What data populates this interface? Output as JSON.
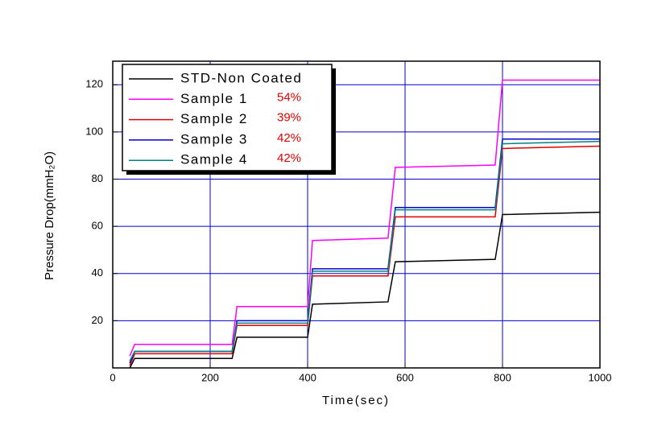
{
  "chart_data": {
    "type": "line",
    "x_label": "Time(sec)",
    "y_label": "Pressure Drop(mmH₂O)",
    "x": [
      35,
      45,
      245,
      255,
      400,
      410,
      565,
      580,
      785,
      800,
      1000
    ],
    "series": [
      {
        "name": "STD-Non Coated",
        "color": "#000000",
        "values": [
          0,
          4,
          4,
          13,
          13,
          27,
          28,
          45,
          46,
          65,
          66
        ]
      },
      {
        "name": "Sample 1",
        "annotation": "54%",
        "color": "#ff00ff",
        "values": [
          5,
          10,
          10,
          26,
          26,
          54,
          55,
          85,
          86,
          122,
          122
        ]
      },
      {
        "name": "Sample 2",
        "annotation": "39%",
        "color": "#e00000",
        "values": [
          1,
          6,
          6,
          18,
          18,
          39,
          39,
          64,
          64,
          93,
          94
        ]
      },
      {
        "name": "Sample 3",
        "annotation": "42%",
        "color": "#0000cc",
        "values": [
          2,
          7,
          7,
          20,
          20,
          42,
          42,
          68,
          68,
          97,
          97
        ]
      },
      {
        "name": "Sample 4",
        "annotation": "42%",
        "color": "#008080",
        "values": [
          3,
          7,
          7,
          19,
          19,
          41,
          41,
          67,
          67,
          95,
          96
        ]
      }
    ],
    "xlim": [
      0,
      1000
    ],
    "xticks": [
      0,
      200,
      400,
      600,
      800,
      1000
    ],
    "ylim": [
      0,
      130
    ],
    "yticks": [
      20,
      40,
      60,
      80,
      100,
      120
    ],
    "grid": true,
    "grid_color": "#0000cc",
    "legend": "upper left"
  }
}
